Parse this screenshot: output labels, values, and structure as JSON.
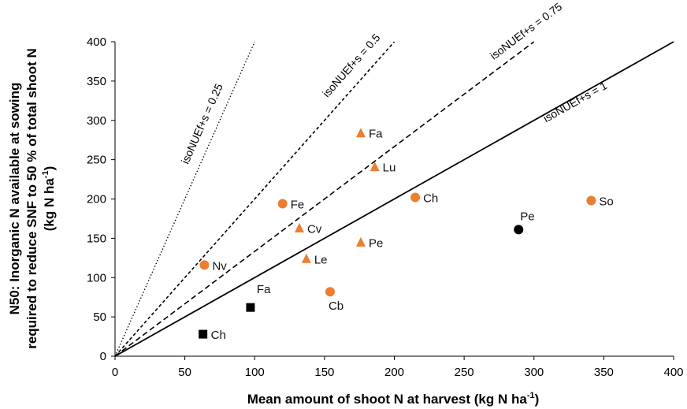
{
  "chart_data": {
    "type": "scatter",
    "xlabel": "Mean amount of shoot N at harvest (kg N ha",
    "xlabel_sup": "-1",
    "xlabel_end": ")",
    "ylabel_line1": "N50: Inorganic N available at sowing",
    "ylabel_line2": "required to reduce SNF to 50 % of total shoot N",
    "ylabel_line3": "(kg N ha",
    "ylabel_line3_sup": "-1",
    "ylabel_line3_end": ")",
    "xlim": [
      0,
      400
    ],
    "ylim": [
      0,
      400
    ],
    "xticks": [
      "0",
      "50",
      "100",
      "150",
      "200",
      "250",
      "300",
      "350",
      "400"
    ],
    "yticks": [
      "0",
      "50",
      "100",
      "150",
      "200",
      "250",
      "300",
      "350",
      "400"
    ],
    "grid": false,
    "colors": {
      "orange": "#ED7D31",
      "black": "#000000"
    },
    "reference_lines": [
      {
        "label": "isoNUEf+s = 0.25",
        "slope": 4,
        "style": "dotted"
      },
      {
        "label": "isoNUEf+s = 0.5",
        "slope": 2,
        "style": "short-dash"
      },
      {
        "label": "isoNUEf+s = 0.75",
        "slope": 1.3333,
        "style": "long-dash"
      },
      {
        "label": "isoNUEf+s = 1",
        "slope": 1,
        "style": "solid"
      }
    ],
    "series": [
      {
        "marker": "circle",
        "color": "#ED7D31",
        "points": [
          {
            "label": "Nv",
            "x": 64,
            "y": 116
          },
          {
            "label": "Fe",
            "x": 120,
            "y": 194
          },
          {
            "label": "Cb",
            "x": 154,
            "y": 82
          },
          {
            "label": "Ch",
            "x": 215,
            "y": 202
          },
          {
            "label": "So",
            "x": 341,
            "y": 198
          }
        ]
      },
      {
        "marker": "triangle",
        "color": "#ED7D31",
        "points": [
          {
            "label": "Fa",
            "x": 176,
            "y": 284
          },
          {
            "label": "Lu",
            "x": 186,
            "y": 241
          },
          {
            "label": "Cv",
            "x": 132,
            "y": 163
          },
          {
            "label": "Pe",
            "x": 176,
            "y": 145
          },
          {
            "label": "Le",
            "x": 137,
            "y": 124
          }
        ]
      },
      {
        "marker": "square",
        "color": "#000000",
        "points": [
          {
            "label": "Fa",
            "x": 97,
            "y": 62
          },
          {
            "label": "Ch",
            "x": 63,
            "y": 28
          }
        ]
      },
      {
        "marker": "circle",
        "color": "#000000",
        "points": [
          {
            "label": "Pe",
            "x": 289,
            "y": 161
          }
        ]
      }
    ]
  }
}
